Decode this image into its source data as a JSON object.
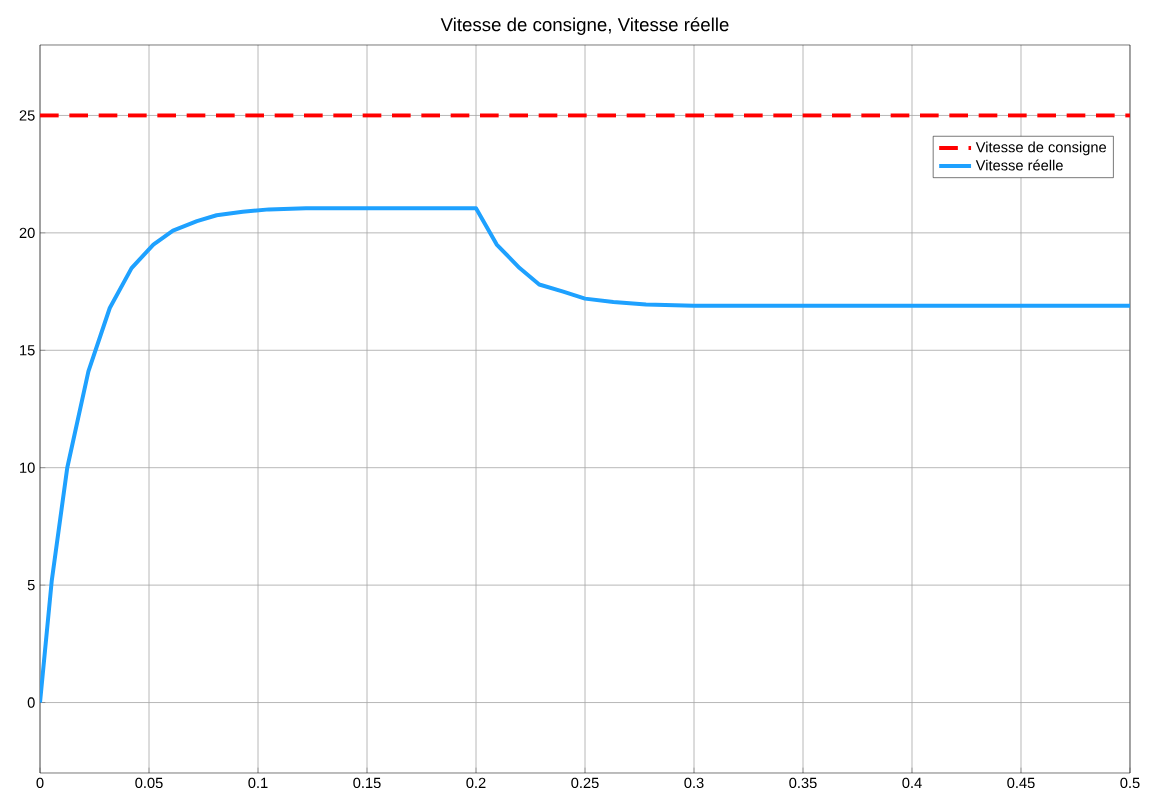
{
  "chart_data": {
    "type": "line",
    "title": "Vitesse de consigne, Vitesse réelle",
    "series": [
      {
        "name": "Vitesse de consigne",
        "color": "#ff0000",
        "line_style": "dashed",
        "x": [
          0,
          0.5
        ],
        "values": [
          25,
          25
        ]
      },
      {
        "name": "Vitesse réelle",
        "color": "#1ea1ff",
        "line_style": "solid",
        "x": [
          0,
          0.0054,
          0.0125,
          0.0222,
          0.032,
          0.042,
          0.052,
          0.061,
          0.072,
          0.081,
          0.093,
          0.105,
          0.122,
          0.2,
          0.2095,
          0.22,
          0.229,
          0.24,
          0.25,
          0.263,
          0.278,
          0.3,
          0.5
        ],
        "values": [
          0,
          5.2,
          10,
          14.1,
          16.8,
          18.5,
          19.5,
          20.1,
          20.5,
          20.75,
          20.9,
          21.0,
          21.05,
          21.05,
          19.5,
          18.5,
          17.8,
          17.5,
          17.2,
          17.06,
          16.95,
          16.9,
          16.9
        ]
      }
    ],
    "xlim": [
      0,
      0.5
    ],
    "ylim": [
      -3,
      28
    ],
    "xticks": [
      0,
      0.05,
      0.1,
      0.15,
      0.2,
      0.25,
      0.3,
      0.35,
      0.4,
      0.45,
      0.5
    ],
    "yticks": [
      0,
      5,
      10,
      15,
      20,
      25
    ],
    "grid": true,
    "legend": "top right",
    "marker": "none"
  }
}
